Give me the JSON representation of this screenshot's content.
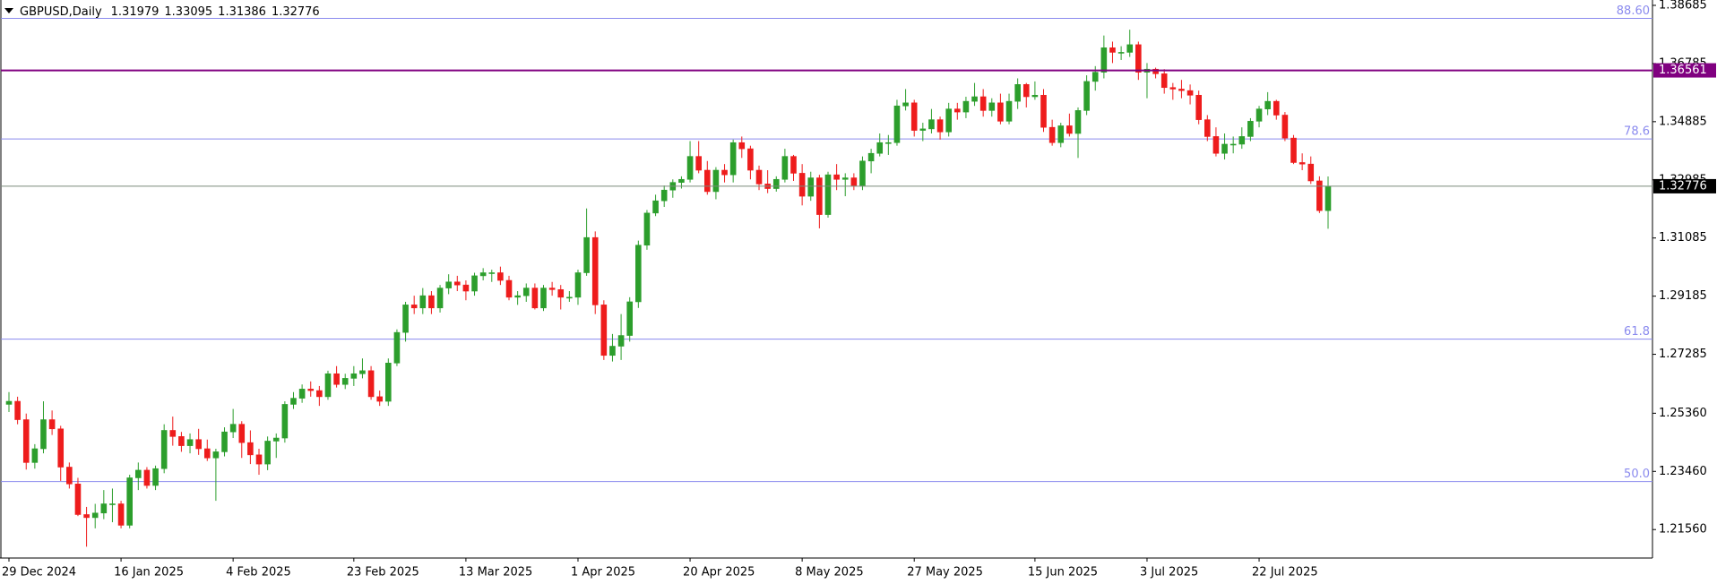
{
  "chart_data": {
    "type": "candlestick",
    "symbol": "GBPUSD,Daily",
    "up_color": "#2c9e2c",
    "down_color": "#ee1c1c",
    "categories": [
      "29 Dec 2024",
      null,
      null,
      null,
      null,
      null,
      null,
      null,
      null,
      null,
      null,
      null,
      null,
      "16 Jan 2025",
      null,
      null,
      null,
      null,
      null,
      null,
      null,
      null,
      null,
      null,
      null,
      null,
      "4 Feb 2025",
      null,
      null,
      null,
      null,
      null,
      null,
      null,
      null,
      null,
      null,
      null,
      null,
      null,
      "23 Feb 2025",
      null,
      null,
      null,
      null,
      null,
      null,
      null,
      null,
      null,
      null,
      null,
      null,
      "13 Mar 2025",
      null,
      null,
      null,
      null,
      null,
      null,
      null,
      null,
      null,
      null,
      null,
      null,
      "1 Apr 2025",
      null,
      null,
      null,
      null,
      null,
      null,
      null,
      null,
      null,
      null,
      null,
      null,
      "20 Apr 2025",
      null,
      null,
      null,
      null,
      null,
      null,
      null,
      null,
      null,
      null,
      null,
      null,
      "8 May 2025",
      null,
      null,
      null,
      null,
      null,
      null,
      null,
      null,
      null,
      null,
      null,
      null,
      "27 May 2025",
      null,
      null,
      null,
      null,
      null,
      null,
      null,
      null,
      null,
      null,
      null,
      null,
      null,
      "15 Jun 2025",
      null,
      null,
      null,
      null,
      null,
      null,
      null,
      null,
      null,
      null,
      null,
      null,
      "3 Jul 2025",
      null,
      null,
      null,
      null,
      null,
      null,
      null,
      null,
      null,
      null,
      null,
      null,
      "22 Jul 2025",
      null,
      null,
      null,
      null,
      null,
      null,
      null,
      null
    ],
    "open": [
      1.2565,
      1.2575,
      1.2515,
      1.2375,
      1.242,
      1.2515,
      1.2485,
      1.236,
      1.2305,
      1.2205,
      1.2195,
      1.221,
      1.224,
      1.224,
      1.217,
      1.2325,
      1.235,
      1.23,
      1.2355,
      1.248,
      1.246,
      1.243,
      1.245,
      1.242,
      1.239,
      1.241,
      1.2475,
      1.25,
      1.244,
      1.24,
      1.237,
      1.2445,
      1.2455,
      1.2565,
      1.2585,
      1.2615,
      1.261,
      1.259,
      1.2665,
      1.263,
      1.265,
      1.2665,
      1.2675,
      1.259,
      1.2575,
      1.27,
      1.28,
      1.289,
      1.288,
      1.292,
      1.288,
      1.2945,
      1.2965,
      1.2955,
      1.2935,
      1.2985,
      1.2995,
      1.2995,
      1.297,
      1.2915,
      1.292,
      1.2945,
      1.288,
      1.2945,
      1.294,
      1.2915,
      1.2915,
      1.2995,
      1.311,
      1.289,
      1.2725,
      1.2755,
      1.279,
      1.29,
      1.3085,
      1.319,
      1.323,
      1.3265,
      1.329,
      1.33,
      1.3375,
      1.333,
      1.326,
      1.333,
      1.3315,
      1.342,
      1.34,
      1.333,
      1.3285,
      1.327,
      1.33,
      1.3375,
      1.332,
      1.3245,
      1.3305,
      1.3185,
      1.3315,
      1.33,
      1.3305,
      1.328,
      1.336,
      1.3385,
      1.342,
      1.342,
      1.354,
      1.355,
      1.346,
      1.3465,
      1.3495,
      1.3455,
      1.353,
      1.352,
      1.3555,
      1.357,
      1.3525,
      1.355,
      1.349,
      1.3555,
      1.361,
      1.357,
      1.3575,
      1.347,
      1.342,
      1.3475,
      1.345,
      1.3525,
      1.362,
      1.365,
      1.373,
      1.3715,
      1.3715,
      1.374,
      1.365,
      1.366,
      1.3645,
      1.36,
      1.3595,
      1.359,
      1.3575,
      1.3495,
      1.344,
      1.3385,
      1.3415,
      1.3415,
      1.344,
      1.349,
      1.353,
      1.3555,
      1.351,
      1.3435,
      1.3355,
      1.335,
      1.3295,
      1.31979
    ],
    "high": [
      1.2605,
      1.259,
      1.2535,
      1.2435,
      1.2575,
      1.2545,
      1.2495,
      1.2375,
      1.2325,
      1.223,
      1.224,
      1.2285,
      1.229,
      1.225,
      1.2335,
      1.2375,
      1.236,
      1.2365,
      1.25,
      1.2525,
      1.2475,
      1.247,
      1.2485,
      1.245,
      1.242,
      1.249,
      1.255,
      1.251,
      1.248,
      1.242,
      1.246,
      1.247,
      1.2575,
      1.2605,
      1.263,
      1.264,
      1.2625,
      1.2675,
      1.269,
      1.2665,
      1.269,
      1.2715,
      1.269,
      1.261,
      1.2715,
      1.281,
      1.29,
      1.292,
      1.2945,
      1.2935,
      1.2955,
      1.299,
      1.2985,
      1.297,
      1.2995,
      1.301,
      1.3005,
      1.3015,
      1.2985,
      1.2935,
      1.296,
      1.296,
      1.2955,
      1.2965,
      1.2955,
      1.2935,
      1.3005,
      1.3205,
      1.313,
      1.2905,
      1.2795,
      1.286,
      1.2915,
      1.31,
      1.32,
      1.325,
      1.328,
      1.33,
      1.331,
      1.3425,
      1.3425,
      1.336,
      1.334,
      1.335,
      1.343,
      1.344,
      1.341,
      1.3345,
      1.333,
      1.331,
      1.34,
      1.338,
      1.335,
      1.3325,
      1.3315,
      1.3325,
      1.335,
      1.332,
      1.332,
      1.3375,
      1.34,
      1.345,
      1.3445,
      1.356,
      1.3595,
      1.356,
      1.3485,
      1.353,
      1.3505,
      1.355,
      1.355,
      1.357,
      1.3615,
      1.3595,
      1.3565,
      1.358,
      1.358,
      1.363,
      1.3615,
      1.362,
      1.3595,
      1.3495,
      1.3485,
      1.3515,
      1.3535,
      1.364,
      1.367,
      1.377,
      1.375,
      1.3735,
      1.3789,
      1.375,
      1.368,
      1.3665,
      1.366,
      1.3615,
      1.3625,
      1.361,
      1.359,
      1.351,
      1.347,
      1.345,
      1.344,
      1.347,
      1.35,
      1.354,
      1.3585,
      1.356,
      1.352,
      1.3445,
      1.3385,
      1.3375,
      1.331,
      1.33095
    ],
    "low": [
      1.254,
      1.25,
      1.2352,
      1.2355,
      1.2405,
      1.2465,
      1.2315,
      1.229,
      1.22,
      1.21,
      1.216,
      1.219,
      1.218,
      1.216,
      1.216,
      1.2285,
      1.229,
      1.2285,
      1.234,
      1.243,
      1.241,
      1.2405,
      1.24,
      1.238,
      1.225,
      1.2395,
      1.2455,
      1.239,
      1.237,
      1.2335,
      1.235,
      1.239,
      1.244,
      1.255,
      1.257,
      1.259,
      1.256,
      1.258,
      1.262,
      1.2615,
      1.2625,
      1.265,
      1.258,
      1.256,
      1.256,
      1.269,
      1.277,
      1.286,
      1.286,
      1.286,
      1.2865,
      1.2925,
      1.2935,
      1.2905,
      1.292,
      1.297,
      1.2965,
      1.2955,
      1.2905,
      1.289,
      1.29,
      1.2875,
      1.287,
      1.292,
      1.2875,
      1.29,
      1.289,
      1.2985,
      1.286,
      1.271,
      1.2705,
      1.271,
      1.277,
      1.288,
      1.307,
      1.318,
      1.321,
      1.324,
      1.327,
      1.329,
      1.332,
      1.325,
      1.3235,
      1.329,
      1.329,
      1.337,
      1.33,
      1.3265,
      1.3255,
      1.326,
      1.329,
      1.3295,
      1.3215,
      1.323,
      1.314,
      1.3175,
      1.3265,
      1.3245,
      1.3265,
      1.3265,
      1.332,
      1.3375,
      1.338,
      1.341,
      1.3525,
      1.344,
      1.3425,
      1.345,
      1.343,
      1.344,
      1.3495,
      1.35,
      1.354,
      1.3505,
      1.3505,
      1.348,
      1.348,
      1.353,
      1.3535,
      1.356,
      1.3455,
      1.341,
      1.3405,
      1.344,
      1.337,
      1.351,
      1.359,
      1.363,
      1.368,
      1.369,
      1.37,
      1.3625,
      1.3565,
      1.363,
      1.358,
      1.356,
      1.3565,
      1.3545,
      1.348,
      1.3425,
      1.3375,
      1.3365,
      1.3385,
      1.34,
      1.3425,
      1.347,
      1.351,
      1.3495,
      1.3425,
      1.335,
      1.333,
      1.3285,
      1.319,
      1.31386
    ],
    "close": [
      1.2575,
      1.2515,
      1.2375,
      1.242,
      1.2515,
      1.2485,
      1.236,
      1.2305,
      1.2205,
      1.2195,
      1.221,
      1.224,
      1.224,
      1.217,
      1.2325,
      1.235,
      1.23,
      1.2355,
      1.248,
      1.246,
      1.243,
      1.245,
      1.242,
      1.239,
      1.241,
      1.2475,
      1.25,
      1.244,
      1.24,
      1.237,
      1.2445,
      1.2455,
      1.2565,
      1.2585,
      1.2615,
      1.261,
      1.259,
      1.2665,
      1.263,
      1.265,
      1.2665,
      1.2675,
      1.259,
      1.2575,
      1.27,
      1.28,
      1.289,
      1.288,
      1.292,
      1.288,
      1.2945,
      1.2965,
      1.2955,
      1.2935,
      1.2985,
      1.2995,
      1.2995,
      1.297,
      1.2915,
      1.292,
      1.2945,
      1.288,
      1.2945,
      1.294,
      1.2915,
      1.2915,
      1.2995,
      1.311,
      1.289,
      1.2725,
      1.2755,
      1.279,
      1.29,
      1.3085,
      1.319,
      1.323,
      1.3265,
      1.329,
      1.33,
      1.3375,
      1.333,
      1.326,
      1.333,
      1.3315,
      1.342,
      1.34,
      1.333,
      1.3285,
      1.327,
      1.33,
      1.3375,
      1.332,
      1.3245,
      1.3305,
      1.3185,
      1.3315,
      1.33,
      1.3305,
      1.328,
      1.336,
      1.3385,
      1.342,
      1.342,
      1.354,
      1.355,
      1.346,
      1.3465,
      1.3495,
      1.3455,
      1.353,
      1.352,
      1.3555,
      1.357,
      1.3525,
      1.355,
      1.349,
      1.3555,
      1.361,
      1.357,
      1.3575,
      1.347,
      1.342,
      1.3475,
      1.345,
      1.3525,
      1.362,
      1.365,
      1.373,
      1.3715,
      1.3715,
      1.374,
      1.365,
      1.366,
      1.3645,
      1.36,
      1.3595,
      1.359,
      1.3575,
      1.3495,
      1.344,
      1.3385,
      1.3415,
      1.3415,
      1.344,
      1.349,
      1.353,
      1.3555,
      1.351,
      1.3435,
      1.3355,
      1.335,
      1.3295,
      1.3198,
      1.32776
    ],
    "ylim": [
      1.2063,
      1.3886
    ],
    "yticks": [
      1.38685,
      1.36785,
      1.34885,
      1.32985,
      1.31085,
      1.29185,
      1.27285,
      {
        "value": 1.2536,
        "label": "1.25360"
      },
      {
        "value": 1.2346,
        "label": "1.23460"
      },
      {
        "value": 1.2156,
        "label": "1.21560"
      }
    ],
    "levels": [
      {
        "value": 1.3826,
        "label": "88.60"
      },
      {
        "value": 1.3432,
        "label": "78.6"
      },
      {
        "value": 1.2778,
        "label": "61.8"
      },
      {
        "value": 1.2313,
        "label": "50.0"
      }
    ],
    "level_color": "#8a8aee",
    "price_lines": [
      {
        "value": 1.36561,
        "color": "#800080"
      },
      {
        "value": 1.32776,
        "color": "#000000"
      }
    ]
  }
}
